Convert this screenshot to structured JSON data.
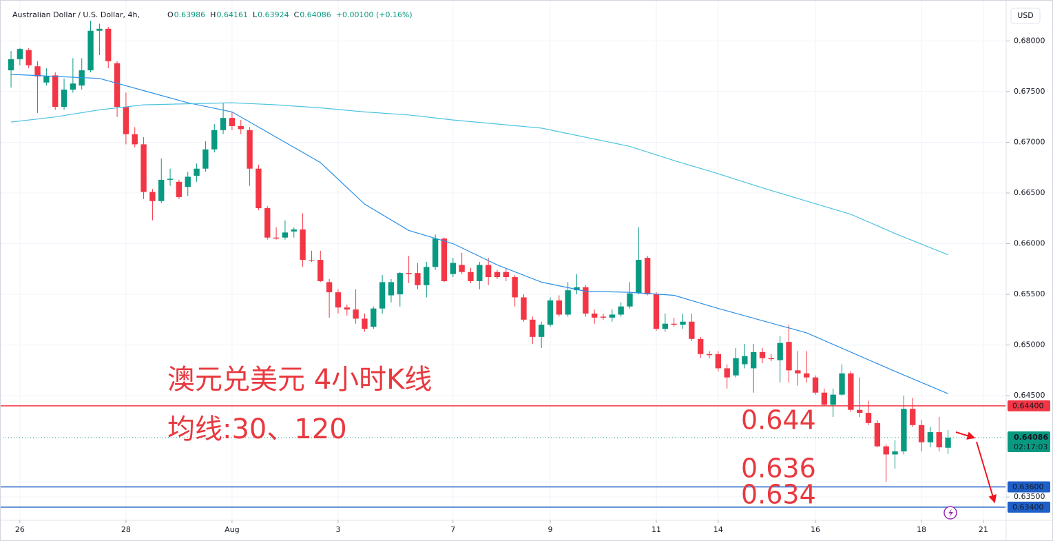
{
  "header": {
    "symbol": "Australian Dollar / U.S. Dollar, 4h,",
    "ohlc": [
      {
        "key": "O",
        "value": "0.63986"
      },
      {
        "key": "H",
        "value": "0.64161"
      },
      {
        "key": "L",
        "value": "0.63924"
      },
      {
        "key": "C",
        "value": "0.64086"
      }
    ],
    "change": "+0.00100 (+0.16%)",
    "currency": "USD"
  },
  "chart_data": {
    "type": "candlestick",
    "up_color": "#089981",
    "down_color": "#f23645",
    "grid": true,
    "xlim": [
      -0.86,
      112.5
    ],
    "ylim": [
      0.6327,
      0.6837
    ],
    "xticks": [
      {
        "value": 1,
        "label": "26"
      },
      {
        "value": 13,
        "label": "28"
      },
      {
        "value": 25,
        "label": "Aug"
      },
      {
        "value": 37,
        "label": "3"
      },
      {
        "value": 50,
        "label": "7"
      },
      {
        "value": 61,
        "label": "9"
      },
      {
        "value": 73,
        "label": "11"
      },
      {
        "value": 80,
        "label": "14"
      },
      {
        "value": 91,
        "label": "16"
      },
      {
        "value": 103,
        "label": "18"
      },
      {
        "value": 110,
        "label": "21"
      }
    ],
    "yticks": [
      {
        "value": 0.68,
        "label": "0.68000"
      },
      {
        "value": 0.675,
        "label": "0.67500"
      },
      {
        "value": 0.67,
        "label": "0.67000"
      },
      {
        "value": 0.665,
        "label": "0.66500"
      },
      {
        "value": 0.66,
        "label": "0.66000"
      },
      {
        "value": 0.655,
        "label": "0.65500"
      },
      {
        "value": 0.65,
        "label": "0.65000"
      },
      {
        "value": 0.645,
        "label": "0.64500"
      },
      {
        "value": 0.635,
        "label": "0.63500"
      }
    ],
    "open": [
      0.6771,
      0.6782,
      0.6791,
      0.6775,
      0.6759,
      0.6766,
      0.6735,
      0.6752,
      0.6756,
      0.6771,
      0.681,
      0.6812,
      0.6778,
      0.6735,
      0.6708,
      0.6698,
      0.6651,
      0.6642,
      0.6663,
      0.6661,
      0.6656,
      0.6667,
      0.6674,
      0.6693,
      0.6712,
      0.6724,
      0.6716,
      0.6712,
      0.6674,
      0.6635,
      0.6606,
      0.6606,
      0.6612,
      0.6614,
      0.6584,
      0.6584,
      0.6562,
      0.6552,
      0.6537,
      0.6535,
      0.6526,
      0.6518,
      0.6536,
      0.6549,
      0.655,
      0.6571,
      0.6571,
      0.6559,
      0.6577,
      0.6605,
      0.657,
      0.6579,
      0.6572,
      0.6563,
      0.6579,
      0.6572,
      0.6572,
      0.6567,
      0.6547,
      0.6525,
      0.6508,
      0.652,
      0.6544,
      0.653,
      0.6554,
      0.6557,
      0.6531,
      0.6528,
      0.6527,
      0.653,
      0.6538,
      0.6551,
      0.6586,
      0.655,
      0.6516,
      0.6521,
      0.652,
      0.6523,
      0.6506,
      0.6491,
      0.6491,
      0.6477,
      0.647,
      0.6481,
      0.6477,
      0.6493,
      0.6487,
      0.6485,
      0.6503,
      0.6475,
      0.6472,
      0.6468,
      0.6453,
      0.6441,
      0.6451,
      0.6472,
      0.6436,
      0.6433,
      0.6423,
      0.64,
      0.6392,
      0.6395,
      0.6437,
      0.6421,
      0.6404,
      0.6414,
      0.63986
    ],
    "high": [
      0.679,
      0.6793,
      0.6793,
      0.678,
      0.6773,
      0.6769,
      0.6763,
      0.6783,
      0.6783,
      0.682,
      0.6817,
      0.6814,
      0.678,
      0.6749,
      0.6715,
      0.6705,
      0.6654,
      0.6684,
      0.6674,
      0.6663,
      0.6671,
      0.6679,
      0.6701,
      0.6718,
      0.6739,
      0.673,
      0.6722,
      0.6715,
      0.6678,
      0.6637,
      0.6616,
      0.6623,
      0.6616,
      0.663,
      0.6593,
      0.6593,
      0.6565,
      0.6555,
      0.654,
      0.6555,
      0.6531,
      0.6538,
      0.6569,
      0.6565,
      0.6572,
      0.6588,
      0.6581,
      0.6582,
      0.6609,
      0.6606,
      0.6586,
      0.6591,
      0.6576,
      0.6582,
      0.6586,
      0.6574,
      0.6576,
      0.6569,
      0.655,
      0.6528,
      0.6523,
      0.6547,
      0.6549,
      0.6562,
      0.657,
      0.6559,
      0.6535,
      0.6531,
      0.6535,
      0.6542,
      0.6562,
      0.6616,
      0.6588,
      0.6552,
      0.6531,
      0.6527,
      0.6531,
      0.6531,
      0.6508,
      0.6494,
      0.6494,
      0.6481,
      0.6497,
      0.6501,
      0.6501,
      0.6497,
      0.6491,
      0.6509,
      0.652,
      0.6494,
      0.6494,
      0.647,
      0.6457,
      0.6457,
      0.6481,
      0.6474,
      0.6468,
      0.6445,
      0.6426,
      0.6402,
      0.6406,
      0.645,
      0.6448,
      0.6426,
      0.6419,
      0.6429,
      0.64161
    ],
    "low": [
      0.6754,
      0.6776,
      0.6773,
      0.6729,
      0.6756,
      0.6732,
      0.6732,
      0.6749,
      0.6752,
      0.6769,
      0.6786,
      0.6773,
      0.6725,
      0.6698,
      0.6695,
      0.6644,
      0.6623,
      0.664,
      0.6657,
      0.6644,
      0.6647,
      0.6661,
      0.6671,
      0.669,
      0.6708,
      0.6712,
      0.6708,
      0.6657,
      0.6633,
      0.6604,
      0.6604,
      0.6604,
      0.6606,
      0.6577,
      0.6582,
      0.6562,
      0.6527,
      0.6531,
      0.6529,
      0.6521,
      0.6513,
      0.6516,
      0.6531,
      0.6542,
      0.6538,
      0.6561,
      0.6555,
      0.6547,
      0.6574,
      0.6562,
      0.6567,
      0.657,
      0.6561,
      0.6555,
      0.6559,
      0.6565,
      0.6563,
      0.6538,
      0.6523,
      0.6501,
      0.6497,
      0.6518,
      0.6528,
      0.6528,
      0.655,
      0.6528,
      0.6521,
      0.6525,
      0.6523,
      0.6528,
      0.6536,
      0.655,
      0.6549,
      0.6514,
      0.6513,
      0.6518,
      0.6516,
      0.6504,
      0.6487,
      0.6487,
      0.6474,
      0.6457,
      0.6468,
      0.6477,
      0.6453,
      0.6482,
      0.6484,
      0.6463,
      0.6463,
      0.646,
      0.6463,
      0.6451,
      0.644,
      0.6429,
      0.645,
      0.6434,
      0.6429,
      0.6421,
      0.6399,
      0.6365,
      0.6378,
      0.6392,
      0.6419,
      0.6395,
      0.6399,
      0.6395,
      0.63924
    ],
    "close": [
      0.6782,
      0.6792,
      0.6776,
      0.6765,
      0.6765,
      0.6735,
      0.6752,
      0.6758,
      0.6771,
      0.681,
      0.6812,
      0.678,
      0.6735,
      0.6708,
      0.6698,
      0.6651,
      0.6642,
      0.6663,
      0.6664,
      0.6646,
      0.6666,
      0.6674,
      0.6693,
      0.6712,
      0.6724,
      0.6716,
      0.6713,
      0.6674,
      0.6635,
      0.6606,
      0.6605,
      0.6611,
      0.6614,
      0.6584,
      0.6584,
      0.6563,
      0.6552,
      0.6537,
      0.6535,
      0.6526,
      0.6516,
      0.6536,
      0.6562,
      0.6562,
      0.6571,
      0.657,
      0.6559,
      0.6577,
      0.6605,
      0.6563,
      0.6581,
      0.6572,
      0.6563,
      0.6579,
      0.6567,
      0.6567,
      0.6567,
      0.6547,
      0.6525,
      0.6508,
      0.652,
      0.6544,
      0.653,
      0.6554,
      0.6557,
      0.6531,
      0.6527,
      0.6527,
      0.653,
      0.6538,
      0.6551,
      0.6584,
      0.655,
      0.6516,
      0.6521,
      0.652,
      0.6523,
      0.6506,
      0.6491,
      0.649,
      0.6477,
      0.6468,
      0.6487,
      0.6489,
      0.6493,
      0.6487,
      0.6486,
      0.6502,
      0.6475,
      0.6472,
      0.6468,
      0.6453,
      0.6441,
      0.6451,
      0.6472,
      0.6436,
      0.6433,
      0.6423,
      0.64,
      0.6392,
      0.6395,
      0.6437,
      0.6421,
      0.6404,
      0.6414,
      0.6399,
      0.64086
    ],
    "series": [
      {
        "color": "#2a8fe8",
        "x": [
          0,
          5,
          10,
          15,
          20,
          25,
          30,
          35,
          40,
          45,
          50,
          55,
          60,
          65,
          70,
          75,
          80,
          85,
          90,
          95,
          100,
          106
        ],
        "values": [
          0.6767,
          0.6765,
          0.6763,
          0.6751,
          0.6739,
          0.673,
          0.6705,
          0.668,
          0.6639,
          0.6613,
          0.66,
          0.6579,
          0.6562,
          0.6553,
          0.6552,
          0.6549,
          0.6536,
          0.6524,
          0.6512,
          0.6493,
          0.6474,
          0.6452
        ]
      },
      {
        "color": "#4cc3e0",
        "x": [
          0,
          5,
          10,
          15,
          20,
          25,
          30,
          35,
          40,
          45,
          50,
          55,
          60,
          65,
          70,
          75,
          80,
          85,
          90,
          95,
          100,
          106
        ],
        "values": [
          0.672,
          0.6725,
          0.6732,
          0.6737,
          0.6738,
          0.6739,
          0.6737,
          0.6734,
          0.673,
          0.6727,
          0.6722,
          0.6718,
          0.6714,
          0.6705,
          0.6696,
          0.6682,
          0.6669,
          0.6655,
          0.6642,
          0.6629,
          0.661,
          0.6589
        ]
      }
    ],
    "price_lines": [
      {
        "value": 0.644,
        "label": "0.64400",
        "color": "#f23645"
      },
      {
        "value": 0.636,
        "label": "0.63600",
        "color": "#1e5fc8"
      },
      {
        "value": 0.634,
        "label": "0.63400",
        "color": "#1e5fc8"
      }
    ],
    "last_price": {
      "value": 0.64086,
      "label": "0.64086",
      "countdown": "02:17:03",
      "color": "#089981"
    },
    "annotations": [
      "澳元兑美元 4小时K线",
      "均线:30、120",
      "0.644",
      "0.636",
      "0.634"
    ]
  }
}
